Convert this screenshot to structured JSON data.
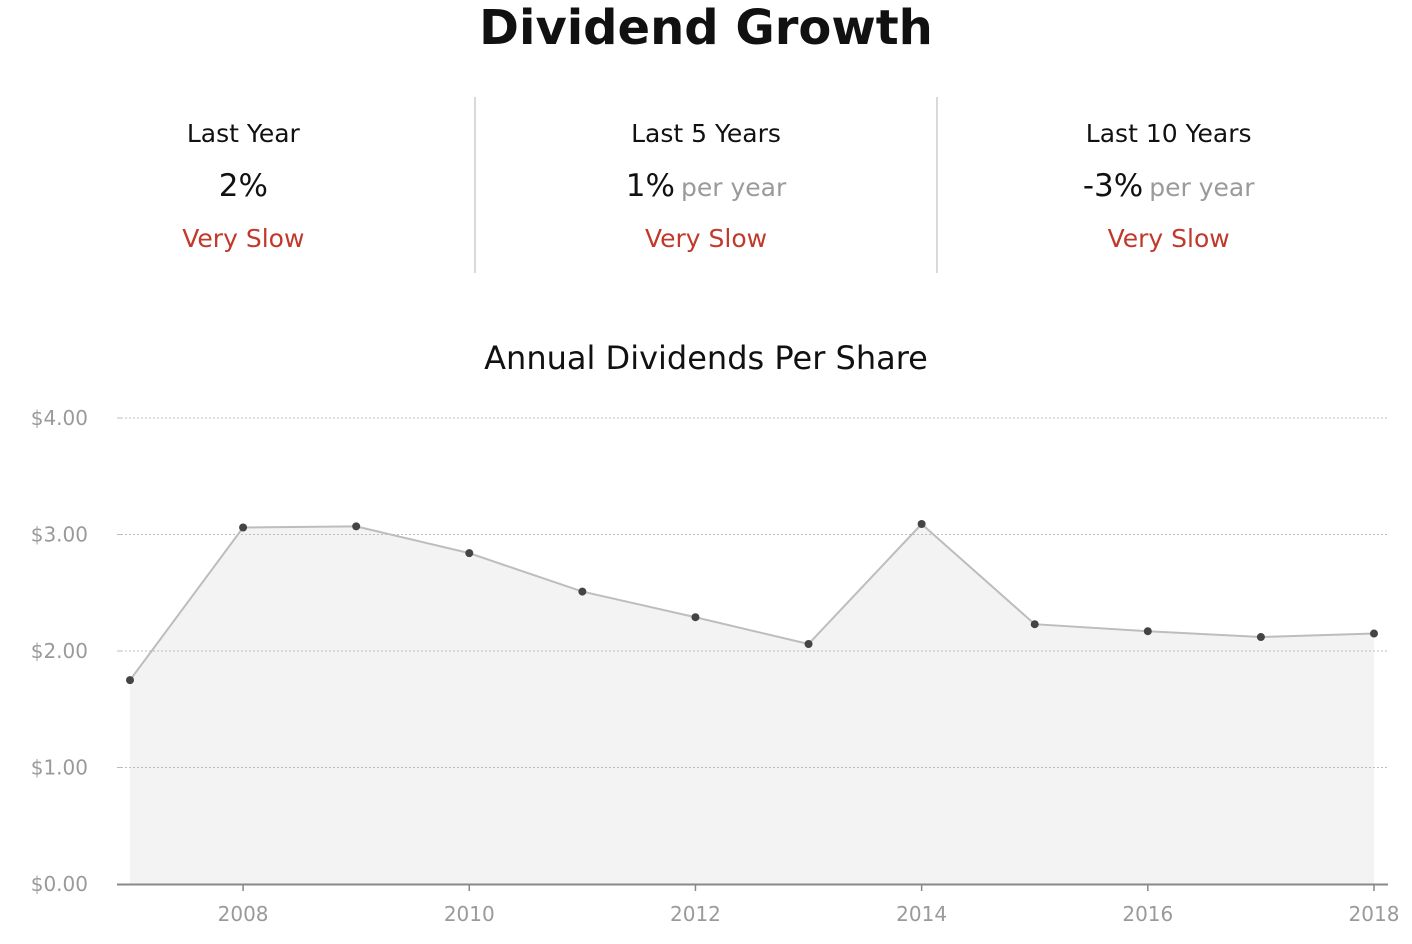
{
  "title": "Dividend Growth",
  "stats": [
    {
      "label": "Last Year",
      "value": "2%",
      "suffix": "",
      "rating": "Very Slow"
    },
    {
      "label": "Last 5 Years",
      "value": "1%",
      "suffix": "per year",
      "rating": "Very Slow"
    },
    {
      "label": "Last 10 Years",
      "value": "-3%",
      "suffix": "per year",
      "rating": "Very Slow"
    }
  ],
  "colors": {
    "rating": "#c0392b",
    "line": "#bdbdbd",
    "area": "#f3f3f3",
    "point": "#444444",
    "grid": "#bcbcbc",
    "axis": "#9a9a9a"
  },
  "chart_data": {
    "type": "area",
    "title": "Annual Dividends Per Share",
    "xlabel": "",
    "ylabel": "",
    "x": [
      2007,
      2008,
      2009,
      2010,
      2011,
      2012,
      2013,
      2014,
      2015,
      2016,
      2017,
      2018
    ],
    "values": [
      1.75,
      3.06,
      3.07,
      2.84,
      2.51,
      2.29,
      2.06,
      3.09,
      2.23,
      2.17,
      2.12,
      2.15
    ],
    "xlim": [
      2007,
      2018
    ],
    "ylim": [
      0,
      4
    ],
    "x_ticks": [
      "2008",
      "2010",
      "2012",
      "2014",
      "2016",
      "2018"
    ],
    "y_ticks": [
      "$0.00",
      "$1.00",
      "$2.00",
      "$3.00",
      "$4.00"
    ],
    "grid": true,
    "grid_style": "dotted",
    "markers": true
  }
}
